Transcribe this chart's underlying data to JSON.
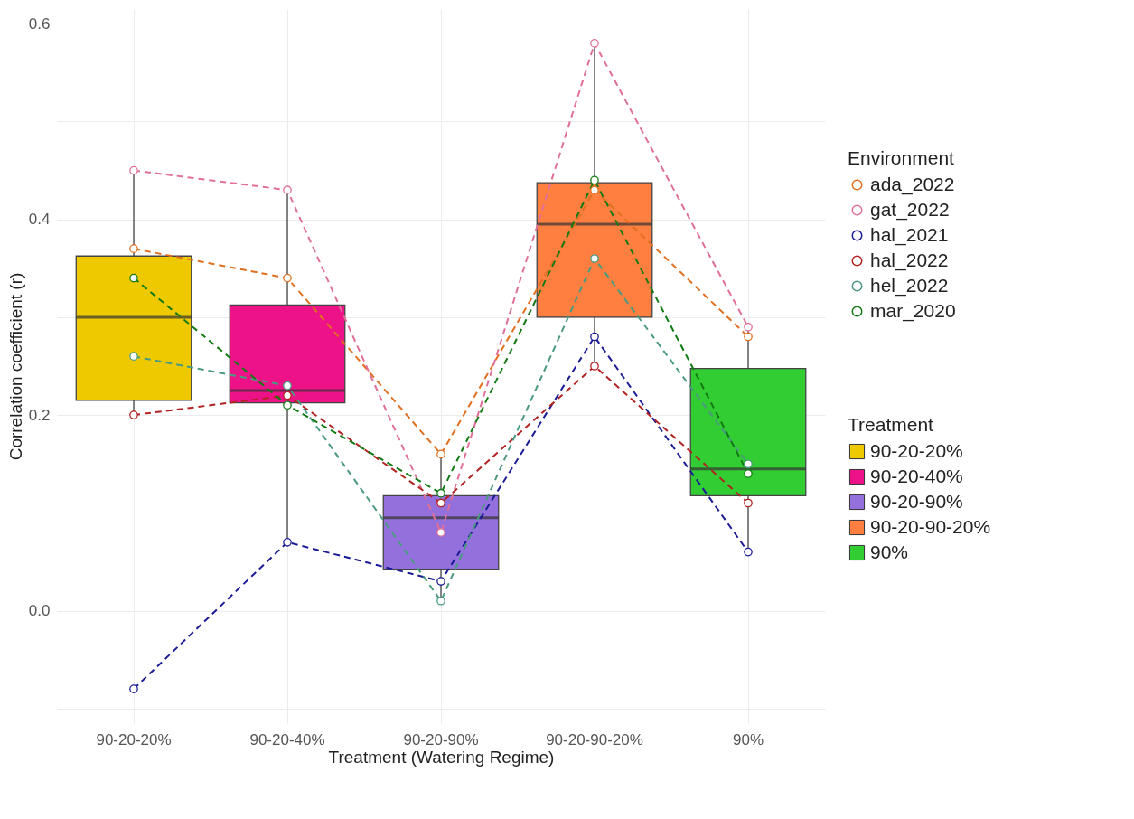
{
  "chart_data": {
    "type": "box",
    "categories": [
      "90-20-20%",
      "90-20-40%",
      "90-20-90%",
      "90-20-90-20%",
      "90%"
    ],
    "xlabel": "Treatment (Watering Regime)",
    "ylabel": "Correlation coefficient (r)",
    "legend_title": "Environment",
    "annotations": [
      "Treatment"
    ],
    "colors": [
      "#eec900",
      "#ee1289",
      "#9370db",
      "#ff7f40",
      "#32cd32"
    ],
    "boxes": [
      {
        "low": 0.2,
        "q1": 0.215,
        "median": 0.3,
        "q3": 0.3625,
        "high": 0.45
      },
      {
        "low": 0.07,
        "q1": 0.2125,
        "median": 0.225,
        "q3": 0.3125,
        "high": 0.43
      },
      {
        "low": 0.01,
        "q1": 0.0425,
        "median": 0.095,
        "q3": 0.1175,
        "high": 0.16
      },
      {
        "low": 0.25,
        "q1": 0.3,
        "median": 0.395,
        "q3": 0.4375,
        "high": 0.58
      },
      {
        "low": 0.06,
        "q1": 0.1175,
        "median": 0.145,
        "q3": 0.2475,
        "high": 0.29
      }
    ],
    "series": [
      {
        "name": "ada_2022",
        "type": "line",
        "color": "#e07020",
        "values": [
          0.37,
          0.34,
          0.16,
          0.43,
          0.28
        ]
      },
      {
        "name": "gat_2022",
        "type": "line",
        "color": "#e07098",
        "values": [
          0.45,
          0.43,
          0.08,
          0.58,
          0.29
        ]
      },
      {
        "name": "hal_2021",
        "type": "line",
        "color": "#1c1c96",
        "values": [
          -0.08,
          0.07,
          0.03,
          0.28,
          0.06
        ]
      },
      {
        "name": "hal_2022",
        "type": "line",
        "color": "#b22222",
        "values": [
          0.2,
          0.22,
          0.11,
          0.25,
          0.11
        ]
      },
      {
        "name": "hel_2022",
        "type": "line",
        "color": "#4a9a80",
        "values": [
          0.26,
          0.23,
          0.01,
          0.36,
          0.15
        ]
      },
      {
        "name": "mar_2020",
        "type": "line",
        "color": "#127a12",
        "values": [
          0.34,
          0.21,
          0.12,
          0.44,
          0.14
        ]
      }
    ],
    "ylim": [
      -0.115,
      0.615
    ],
    "yticks": [
      {
        "value": -0.1,
        "label": null
      },
      {
        "value": 0,
        "label": "0.0"
      },
      {
        "value": 0.1,
        "label": null
      },
      {
        "value": 0.2,
        "label": "0.2"
      },
      {
        "value": 0.3,
        "label": null
      },
      {
        "value": 0.4,
        "label": "0.4"
      },
      {
        "value": 0.5,
        "label": null
      },
      {
        "value": 0.6,
        "label": "0.6"
      }
    ],
    "grid": true,
    "legend": "right",
    "marker": "circle",
    "line_style": "dashed"
  }
}
